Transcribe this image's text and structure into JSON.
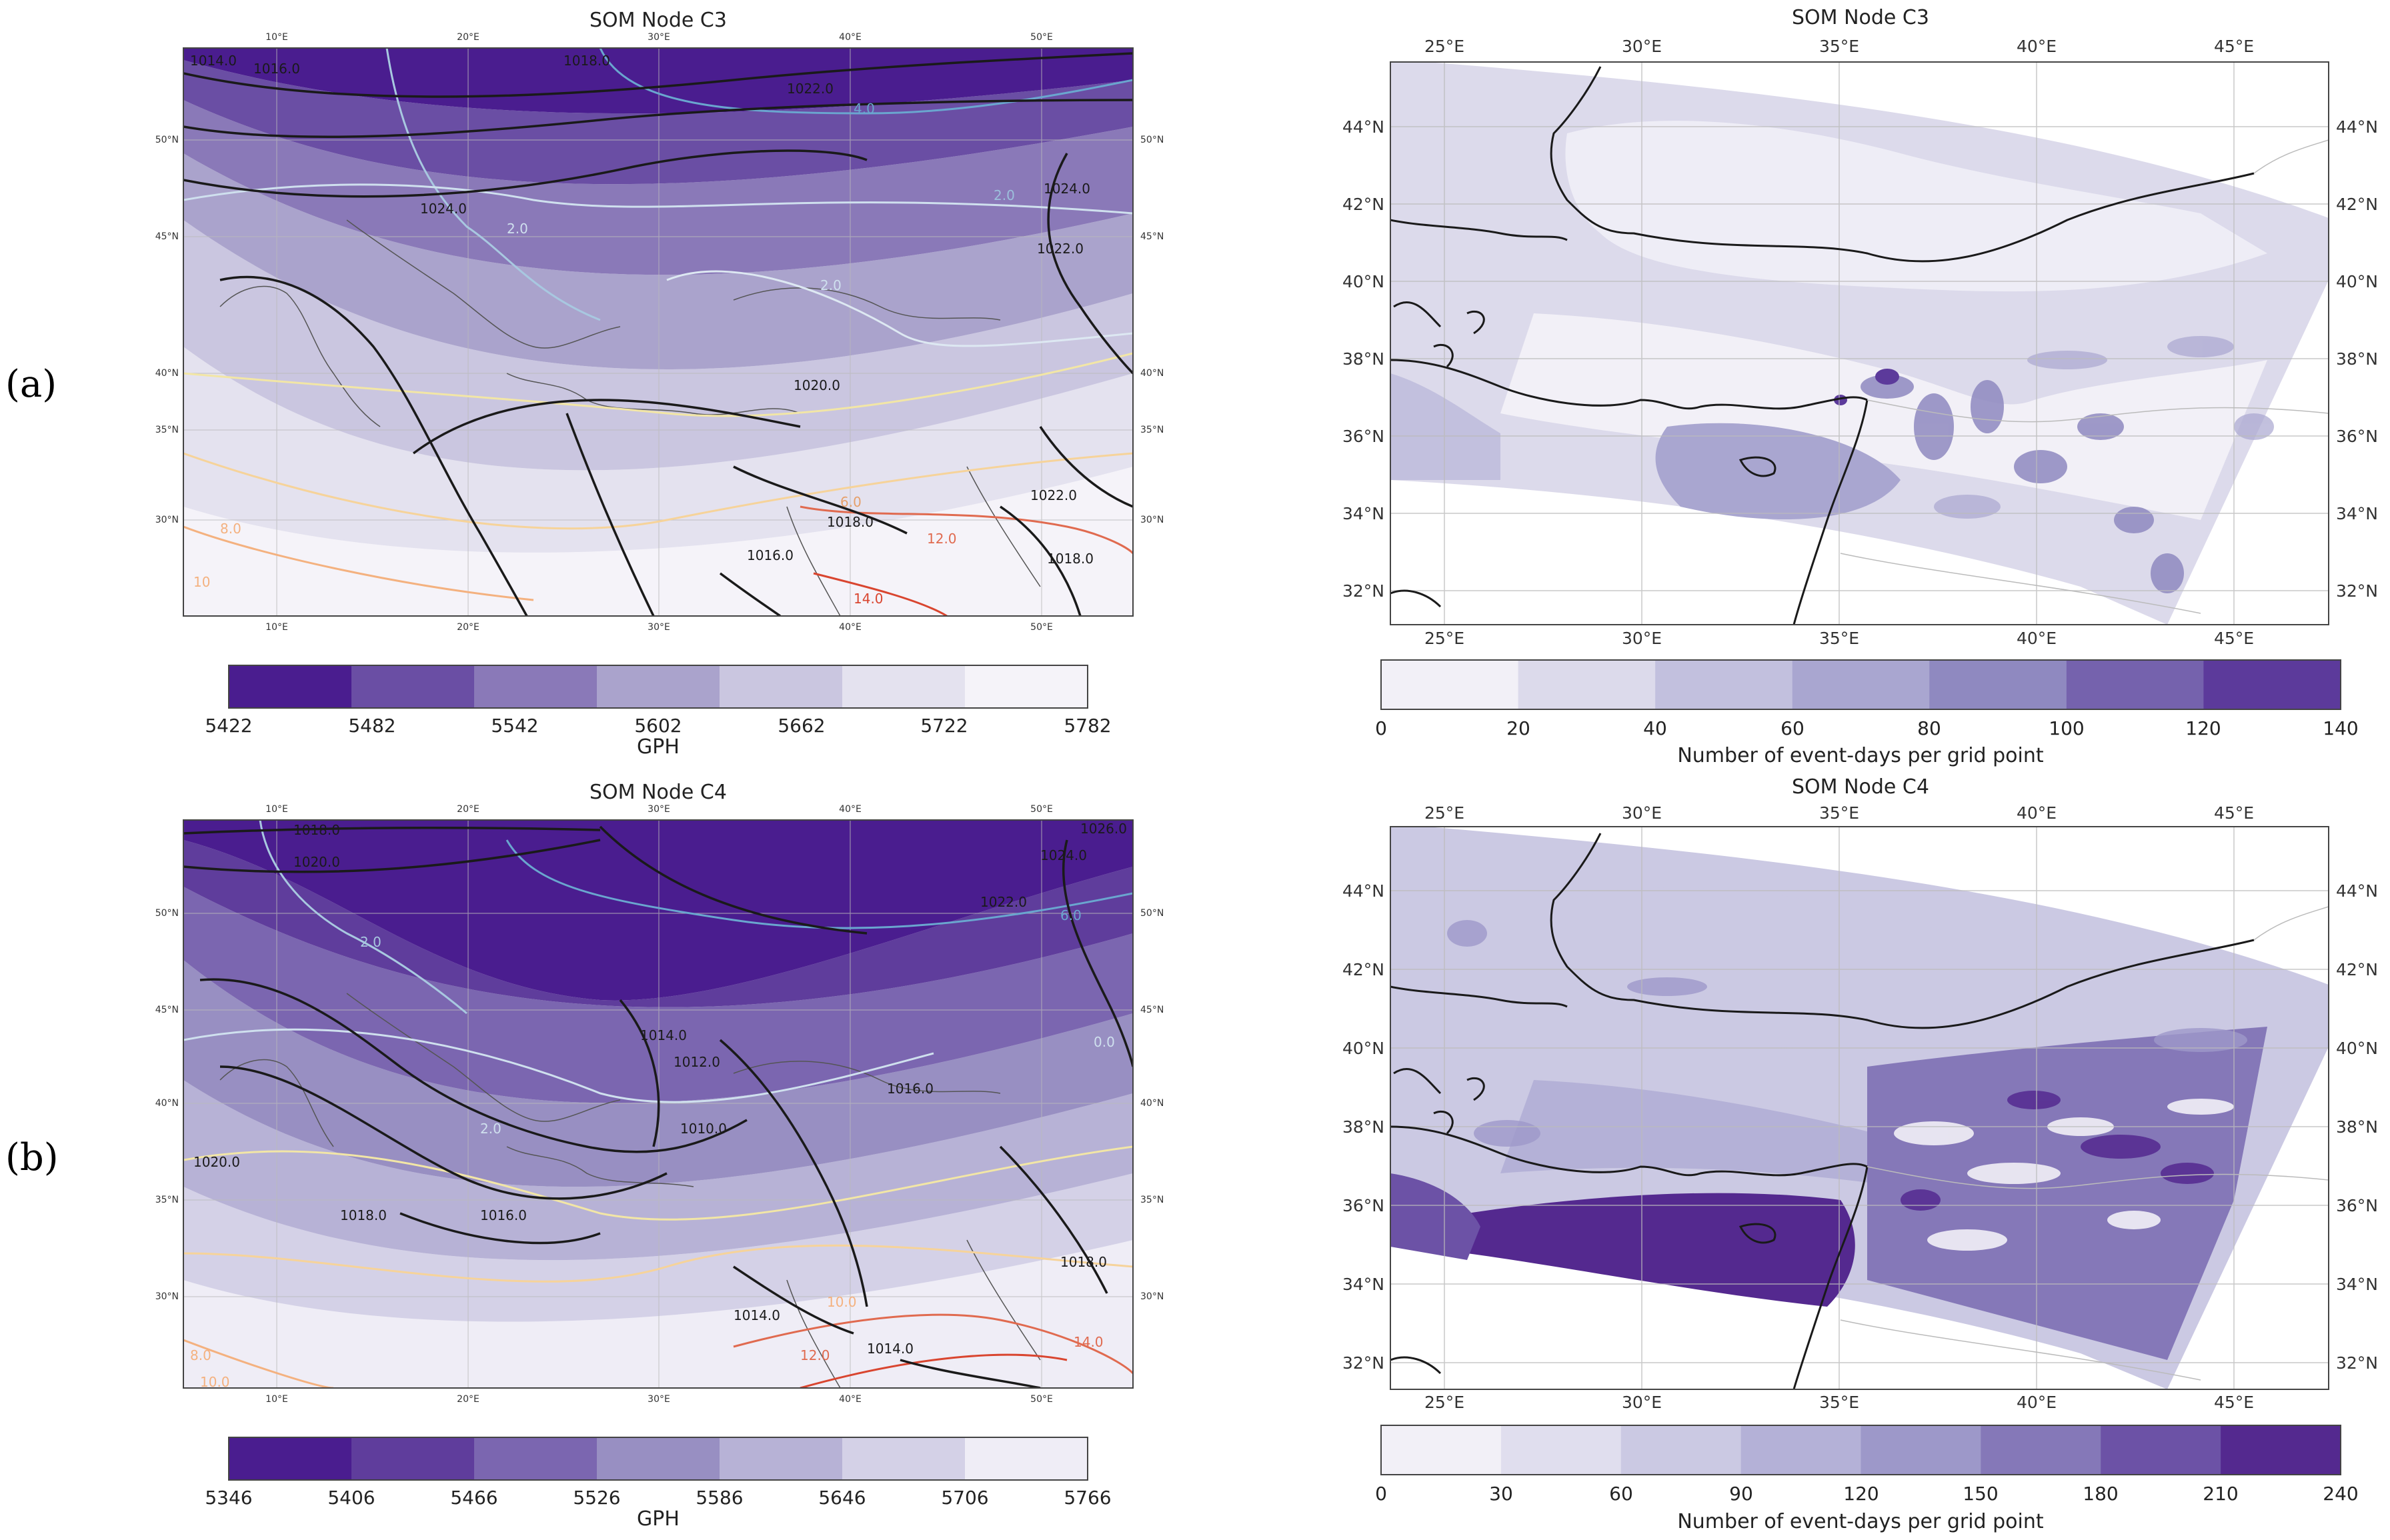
{
  "panel_labels": [
    "(a)",
    "(b)"
  ],
  "left_maps": [
    {
      "title": "SOM Node C3",
      "lon_ticks": [
        "10°E",
        "20°E",
        "30°E",
        "40°E",
        "50°E"
      ],
      "lat_ticks": [
        "50°N",
        "45°N",
        "40°N",
        "35°N",
        "30°N"
      ],
      "colorbar": {
        "ticks": [
          "5422",
          "5482",
          "5542",
          "5602",
          "5662",
          "5722",
          "5782"
        ],
        "label": "GPH",
        "colors": [
          "#4a1d8f",
          "#6a4ea4",
          "#8a79b8",
          "#aaa3cc",
          "#cac6e0",
          "#e4e2ef",
          "#f5f3f9"
        ]
      },
      "contour_labels": [
        "1014.0",
        "1016.0",
        "1018.0",
        "1022.0",
        "1024.0",
        "1020.0",
        "1022.0",
        "1024.0",
        "1016.0",
        "1018.0",
        "1018.0",
        "1022.0"
      ],
      "temp_labels": [
        "4.0",
        "2.0",
        "2.0",
        "2.0",
        "6.0",
        "8.0",
        "10",
        "12.0",
        "14.0"
      ]
    },
    {
      "title": "SOM Node C4",
      "lon_ticks": [
        "10°E",
        "20°E",
        "30°E",
        "40°E",
        "50°E"
      ],
      "lat_ticks": [
        "50°N",
        "45°N",
        "40°N",
        "35°N",
        "30°N"
      ],
      "colorbar": {
        "ticks": [
          "5346",
          "5406",
          "5466",
          "5526",
          "5586",
          "5646",
          "5706",
          "5766"
        ],
        "label": "GPH",
        "colors": [
          "#4a1d8f",
          "#5f3d9c",
          "#7b66b0",
          "#988fc2",
          "#b7b2d6",
          "#d4d1e7",
          "#efedf6"
        ]
      },
      "contour_labels": [
        "1018.0",
        "1020.0",
        "1024.0",
        "1026.0",
        "1022.0",
        "1014.0",
        "1012.0",
        "1010.0",
        "1016.0",
        "1020.0",
        "1018.0",
        "1016.0",
        "1014.0",
        "1018.0",
        "1014.0"
      ],
      "temp_labels": [
        "6.0",
        "0.0",
        "2.0",
        "2.0",
        "8.0",
        "10.0",
        "10.0",
        "14.0",
        "12.0"
      ]
    }
  ],
  "right_maps": [
    {
      "title": "SOM Node C3",
      "lon_ticks": [
        "25°E",
        "30°E",
        "35°E",
        "40°E",
        "45°E"
      ],
      "lat_ticks": [
        "44°N",
        "42°N",
        "40°N",
        "38°N",
        "36°N",
        "34°N",
        "32°N"
      ],
      "colorbar": {
        "ticks": [
          "0",
          "20",
          "40",
          "60",
          "80",
          "100",
          "120",
          "140"
        ],
        "label": "Number of event-days per grid point",
        "colors": [
          "#f2f0f7",
          "#dcdaeb",
          "#c2c0de",
          "#a9a6d0",
          "#8f89c0",
          "#7562ad",
          "#5c3a9b"
        ]
      }
    },
    {
      "title": "SOM Node C4",
      "lon_ticks": [
        "25°E",
        "30°E",
        "35°E",
        "40°E",
        "45°E"
      ],
      "lat_ticks": [
        "44°N",
        "42°N",
        "40°N",
        "38°N",
        "36°N",
        "34°N",
        "32°N"
      ],
      "colorbar": {
        "ticks": [
          "0",
          "30",
          "60",
          "90",
          "120",
          "150",
          "180",
          "210",
          "240"
        ],
        "label": "Number of event-days per grid point",
        "colors": [
          "#f2f0f7",
          "#e0deee",
          "#cbc9e3",
          "#b4b1d7",
          "#9d98c9",
          "#8578b8",
          "#6c52a6",
          "#54298f"
        ]
      }
    }
  ]
}
